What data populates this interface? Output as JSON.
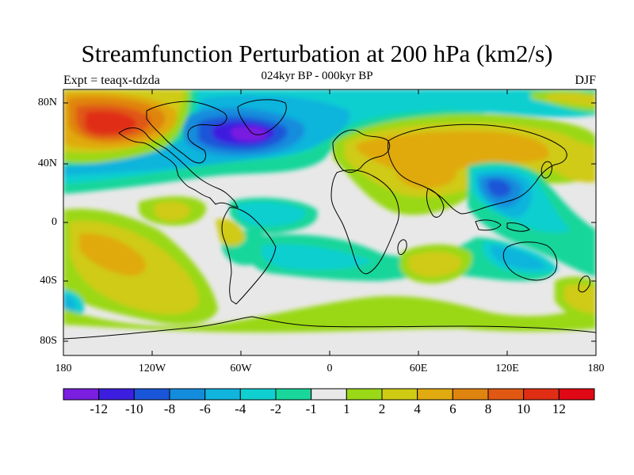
{
  "title": "Streamfunction Perturbation at 200 hPa (km2/s)",
  "subtitle": "024kyr BP - 000kyr BP",
  "experiment": "Expt = teaqx-tdzda",
  "season": "DJF",
  "lat_ticks": [
    "80N",
    "40N",
    "0",
    "40S",
    "80S"
  ],
  "lon_ticks": [
    "180",
    "120W",
    "60W",
    "0",
    "60E",
    "120E",
    "180"
  ],
  "colorbar": {
    "labels": [
      "-12",
      "-10",
      "-8",
      "-6",
      "-4",
      "-2",
      "-1",
      "1",
      "2",
      "4",
      "6",
      "8",
      "10",
      "12"
    ],
    "colors": [
      "#7a1ee0",
      "#3c1ee0",
      "#1a56d8",
      "#148cdc",
      "#10b4dc",
      "#10cfd0",
      "#19d69a",
      "#e8e8e8",
      "#9ad818",
      "#cfcb14",
      "#e0aa10",
      "#e08410",
      "#e05812",
      "#e02e14",
      "#e00814"
    ]
  },
  "colors": {
    "background": "#e8e8e8",
    "coast": "#000000"
  }
}
